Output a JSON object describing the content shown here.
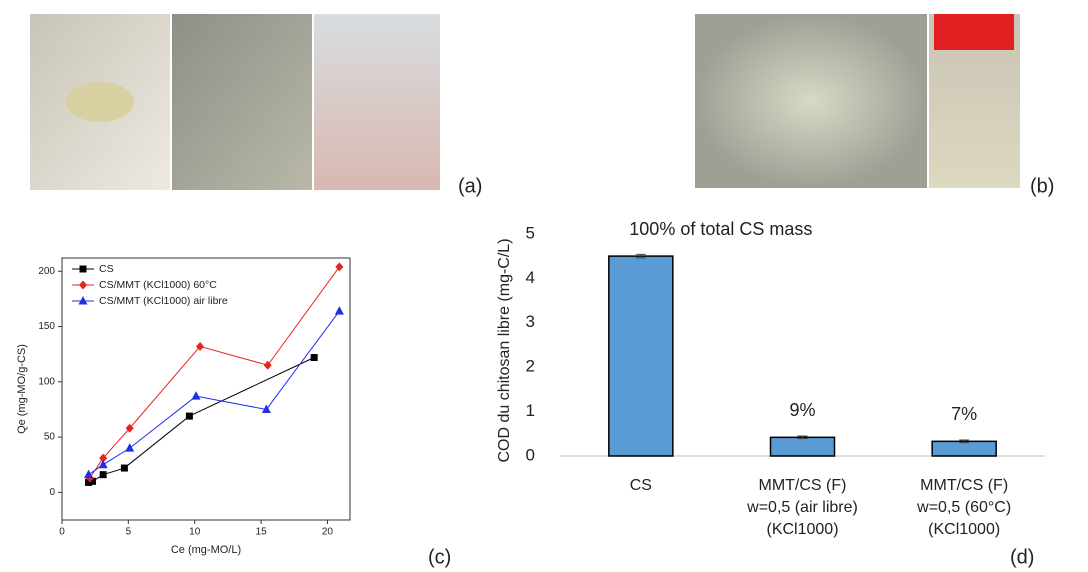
{
  "panels": [
    "(a)",
    "(b)",
    "(c)",
    "(d)"
  ],
  "chart_data": [
    {
      "type": "line",
      "xlabel": "Ce (mg-MO/L)",
      "ylabel": "Qe (mg-MO/g-CS)",
      "xlim": [
        0,
        21.7
      ],
      "xticks": [
        0,
        5,
        10,
        15,
        20
      ],
      "ylim": [
        -25,
        212
      ],
      "yticks": [
        0,
        50,
        100,
        150,
        200
      ],
      "legend": "upper-left",
      "series": [
        {
          "name": "CS",
          "color": "#000000",
          "marker": "square",
          "x": [
            2,
            2.3,
            3.1,
            4.7,
            9.6,
            19
          ],
          "values": [
            9,
            10,
            16,
            22,
            69,
            122
          ]
        },
        {
          "name": "CS/MMT (KCl1000) 60°C",
          "color": "#e8231f",
          "marker": "diamond",
          "x": [
            2.1,
            3.1,
            5.1,
            10.4,
            15.5,
            20.9
          ],
          "values": [
            13,
            31,
            58,
            132,
            115,
            204
          ]
        },
        {
          "name": "CS/MMT (KCl1000) air libre",
          "color": "#1f2ee8",
          "marker": "triangle",
          "x": [
            2,
            3.1,
            5.1,
            10.1,
            15.4,
            20.9
          ],
          "values": [
            16,
            25,
            40,
            87,
            75,
            164
          ]
        }
      ]
    },
    {
      "type": "bar",
      "ylabel": "COD du chitosan libre (mg-C/L)",
      "categories": [
        [
          "CS"
        ],
        [
          "MMT/CS (F)",
          "w=0,5 (air libre)",
          "(KCl1000)"
        ],
        [
          "MMT/CS (F)",
          "w=0,5 (60°C)",
          "(KCl1000)"
        ]
      ],
      "values": [
        4.5,
        0.42,
        0.33
      ],
      "errors": [
        0.04,
        0.03,
        0.03
      ],
      "annotations": [
        "100% of total CS mass",
        "9%",
        "7%"
      ],
      "color": "#5b9bd5",
      "ylim": [
        0,
        5.2
      ],
      "yticks": [
        0,
        1,
        2,
        3,
        4,
        5
      ]
    }
  ]
}
